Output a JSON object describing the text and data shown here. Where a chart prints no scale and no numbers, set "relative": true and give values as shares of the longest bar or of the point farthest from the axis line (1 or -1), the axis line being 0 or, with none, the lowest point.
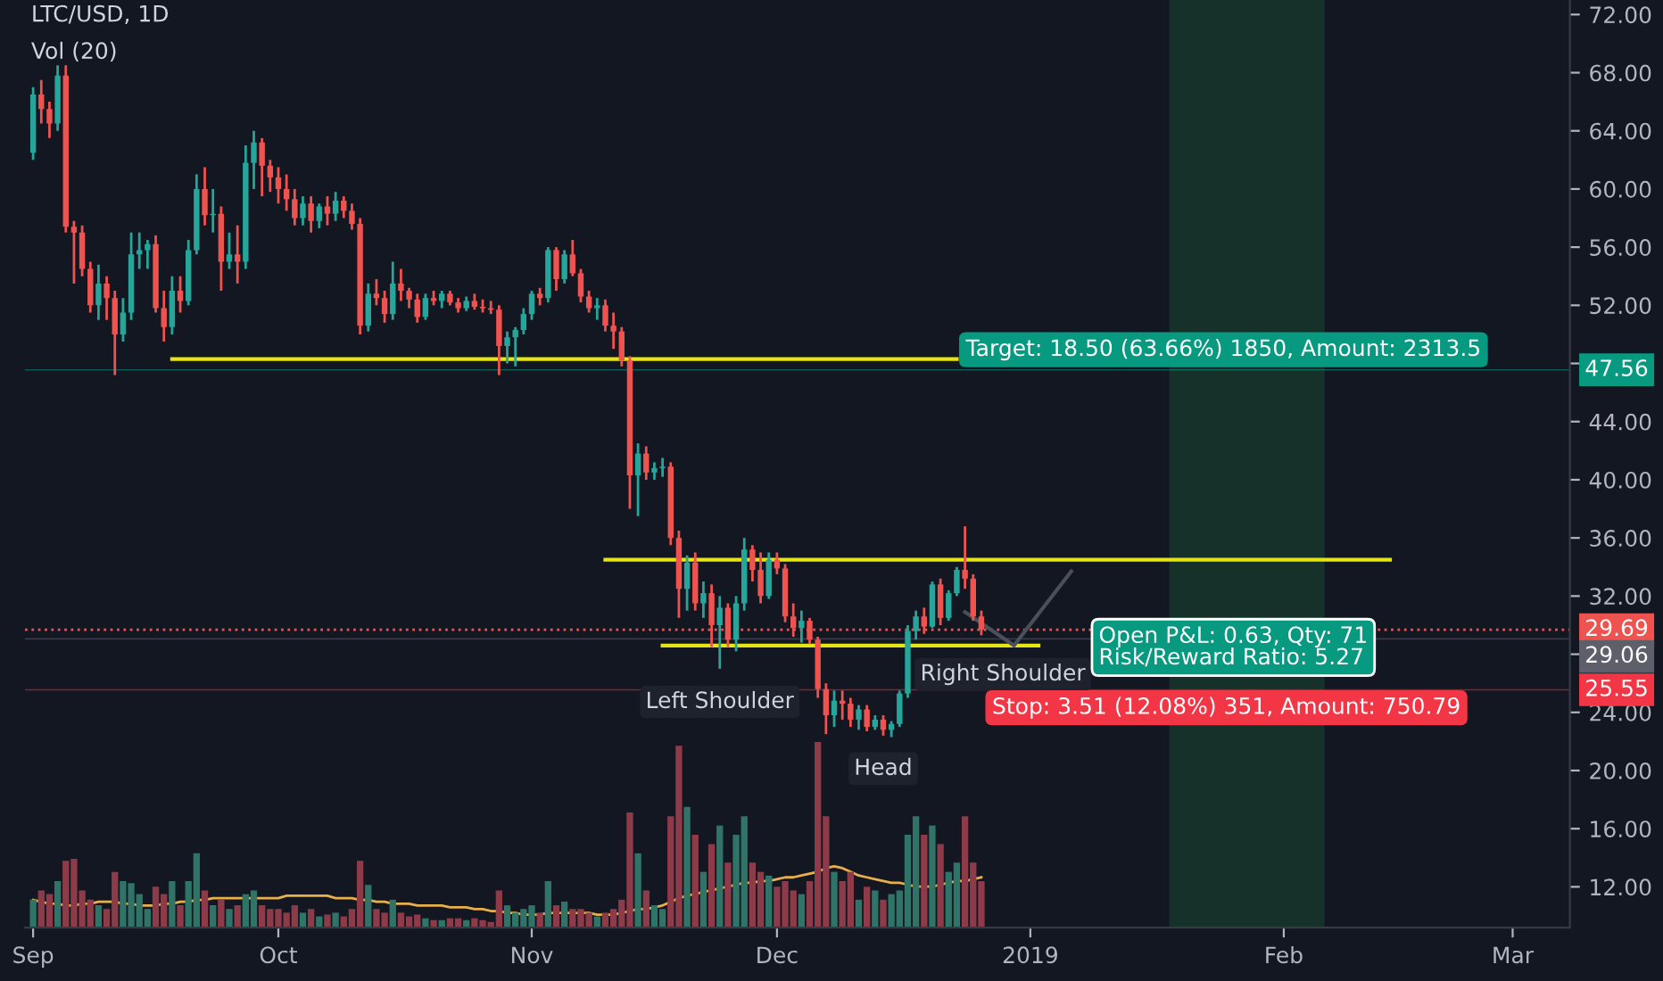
{
  "chart_data": [
    {
      "type": "candlestick",
      "title": "LTC/USD, 1D",
      "grid": false,
      "annotations": [
        "Vol (20)",
        {
          "text": "Left Shoulder",
          "x": "2018-11-24",
          "y": 27
        },
        {
          "text": "Head",
          "x": "2018-12-14",
          "y": 22.4
        },
        "Right Shoulder",
        "Target: 18.50 (63.66%) 1850, Amount: 2313.5",
        "Open P&L: 0.63, Qty: 71\nRisk/Reward Ratio: 5.27",
        "Stop: 3.51 (12.08%) 351, Amount: 750.79"
      ],
      "x": [
        "2018-09-01",
        "2018-09-02",
        "2018-09-03",
        "2018-09-04",
        "2018-09-05",
        "2018-09-06",
        "2018-09-07",
        "2018-09-08",
        "2018-09-09",
        "2018-09-10",
        "2018-09-11",
        "2018-09-12",
        "2018-09-13",
        "2018-09-14",
        "2018-09-15",
        "2018-09-16",
        "2018-09-17",
        "2018-09-18",
        "2018-09-19",
        "2018-09-20",
        "2018-09-21",
        "2018-09-22",
        "2018-09-23",
        "2018-09-24",
        "2018-09-25",
        "2018-09-26",
        "2018-09-27",
        "2018-09-28",
        "2018-09-29",
        "2018-09-30",
        "2018-10-01",
        "2018-10-02",
        "2018-10-03",
        "2018-10-04",
        "2018-10-05",
        "2018-10-06",
        "2018-10-07",
        "2018-10-08",
        "2018-10-09",
        "2018-10-10",
        "2018-10-11",
        "2018-10-12",
        "2018-10-13",
        "2018-10-14",
        "2018-10-15",
        "2018-10-16",
        "2018-10-17",
        "2018-10-18",
        "2018-10-19",
        "2018-10-20",
        "2018-10-21",
        "2018-10-22",
        "2018-10-23",
        "2018-10-24",
        "2018-10-25",
        "2018-10-26",
        "2018-10-27",
        "2018-10-28",
        "2018-10-29",
        "2018-10-30",
        "2018-10-31",
        "2018-11-01",
        "2018-11-02",
        "2018-11-03",
        "2018-11-04",
        "2018-11-05",
        "2018-11-06",
        "2018-11-07",
        "2018-11-08",
        "2018-11-09",
        "2018-11-10",
        "2018-11-11",
        "2018-11-12",
        "2018-11-13",
        "2018-11-14",
        "2018-11-15",
        "2018-11-16",
        "2018-11-17",
        "2018-11-18",
        "2018-11-19",
        "2018-11-20",
        "2018-11-21",
        "2018-11-22",
        "2018-11-23",
        "2018-11-24",
        "2018-11-25",
        "2018-11-26",
        "2018-11-27",
        "2018-11-28",
        "2018-11-29",
        "2018-11-30",
        "2018-12-01",
        "2018-12-02",
        "2018-12-03",
        "2018-12-04",
        "2018-12-05",
        "2018-12-06",
        "2018-12-07",
        "2018-12-08",
        "2018-12-09",
        "2018-12-10",
        "2018-12-11",
        "2018-12-12",
        "2018-12-13",
        "2018-12-14",
        "2018-12-15",
        "2018-12-16",
        "2018-12-17",
        "2018-12-18",
        "2018-12-19",
        "2018-12-20",
        "2018-12-21",
        "2018-12-22",
        "2018-12-23",
        "2018-12-24",
        "2018-12-25",
        "2018-12-26"
      ],
      "ohlc": [
        [
          62.5,
          67,
          62,
          66.5
        ],
        [
          66.5,
          67.5,
          64.5,
          65.5
        ],
        [
          65.5,
          66,
          63.5,
          64.5
        ],
        [
          64.5,
          68.5,
          64,
          67.8
        ],
        [
          67.8,
          68.5,
          57,
          57.4
        ],
        [
          57.4,
          57.8,
          53.5,
          57.0
        ],
        [
          57,
          57.5,
          54,
          54.5
        ],
        [
          54.5,
          55,
          51.5,
          52
        ],
        [
          52,
          54.8,
          51,
          53.5
        ],
        [
          53.5,
          54,
          51,
          52.5
        ],
        [
          52.5,
          53,
          47.2,
          50
        ],
        [
          50,
          52.5,
          49.5,
          51.5
        ],
        [
          51.5,
          57,
          51,
          55.5
        ],
        [
          55.5,
          57,
          54.5,
          55.8
        ],
        [
          55.8,
          56.5,
          54.5,
          56.2
        ],
        [
          56.2,
          56.8,
          51.5,
          51.8
        ],
        [
          51.8,
          53,
          49.5,
          50.5
        ],
        [
          50.5,
          54,
          50,
          53
        ],
        [
          53,
          54,
          51.5,
          52.3
        ],
        [
          52.3,
          56.5,
          52,
          55.8
        ],
        [
          55.8,
          61,
          55.5,
          60
        ],
        [
          60,
          61.5,
          57.5,
          58.2
        ],
        [
          58.2,
          60,
          57,
          58.3
        ],
        [
          58.3,
          58.8,
          53,
          55
        ],
        [
          55,
          57,
          54.5,
          55.5
        ],
        [
          55.5,
          57.5,
          53.5,
          55
        ],
        [
          55,
          63,
          54.5,
          61.8
        ],
        [
          61.8,
          64,
          60,
          63.2
        ],
        [
          63.2,
          63.5,
          59.5,
          61.6
        ],
        [
          61.6,
          62,
          59.8,
          60.8
        ],
        [
          60.8,
          61.5,
          59,
          60
        ],
        [
          60,
          61,
          58.5,
          59.3
        ],
        [
          59.3,
          60,
          57.5,
          58
        ],
        [
          58,
          59.5,
          57.5,
          59
        ],
        [
          59,
          59.5,
          57,
          57.8
        ],
        [
          57.8,
          59,
          57.3,
          58.8
        ],
        [
          58.8,
          59.5,
          57.5,
          58.3
        ],
        [
          58.3,
          59.8,
          57.8,
          59.2
        ],
        [
          59.2,
          59.5,
          58,
          58.5
        ],
        [
          58.5,
          59,
          57.2,
          57.6
        ],
        [
          57.6,
          58,
          50,
          50.6
        ],
        [
          50.6,
          53.5,
          50.2,
          52.8
        ],
        [
          52.8,
          53.8,
          52,
          52.5
        ],
        [
          52.5,
          53,
          50.8,
          51.4
        ],
        [
          51.4,
          55,
          51,
          53.5
        ],
        [
          53.5,
          54.5,
          52.3,
          53
        ],
        [
          53,
          53.2,
          51.8,
          52.4
        ],
        [
          52.4,
          52.8,
          50.8,
          51.2
        ],
        [
          51.2,
          52.8,
          51,
          52.5
        ],
        [
          52.5,
          53,
          52,
          52.3
        ],
        [
          52.3,
          53,
          51.8,
          52.8
        ],
        [
          52.8,
          53,
          52,
          52.2
        ],
        [
          52.2,
          52.5,
          51.5,
          51.8
        ],
        [
          51.8,
          52.6,
          51.6,
          52.3
        ],
        [
          52.3,
          52.8,
          51.7,
          51.9
        ],
        [
          51.9,
          52.4,
          51.5,
          51.8
        ],
        [
          51.8,
          52.3,
          51.4,
          51.7
        ],
        [
          51.7,
          52,
          47.2,
          49.2
        ],
        [
          49.2,
          50.2,
          48,
          49.8
        ],
        [
          49.8,
          50.5,
          47.8,
          50.3
        ],
        [
          50.3,
          51.8,
          50,
          51.4
        ],
        [
          51.4,
          53,
          51,
          52.8
        ],
        [
          52.8,
          53.2,
          52,
          52.5
        ],
        [
          52.5,
          56,
          52.2,
          55.8
        ],
        [
          55.8,
          56,
          53,
          53.8
        ],
        [
          53.8,
          55.8,
          53.5,
          55.5
        ],
        [
          55.5,
          56.5,
          54,
          54.2
        ],
        [
          54.2,
          54.5,
          52.2,
          52.6
        ],
        [
          52.6,
          53,
          51.5,
          51.8
        ],
        [
          51.8,
          52.5,
          51,
          52
        ],
        [
          52,
          52.4,
          50.2,
          50.6
        ],
        [
          50.6,
          51.5,
          49,
          50.2
        ],
        [
          50.2,
          50.5,
          47.8,
          48.2
        ],
        [
          48.2,
          48.5,
          38,
          40.3
        ],
        [
          40.3,
          42.5,
          37.5,
          41.8
        ],
        [
          41.8,
          42.3,
          40,
          40.5
        ],
        [
          40.5,
          41.2,
          40,
          40.8
        ],
        [
          40.8,
          41.5,
          40.2,
          40.9
        ],
        [
          40.9,
          41.2,
          35.5,
          36
        ],
        [
          36,
          36.5,
          30.5,
          32.5
        ],
        [
          32.5,
          34.8,
          31,
          34.3
        ],
        [
          34.3,
          35,
          31,
          31.5
        ],
        [
          31.5,
          33,
          30.5,
          32.2
        ],
        [
          32.2,
          32.8,
          28.5,
          30
        ],
        [
          30,
          32,
          27,
          31.2
        ],
        [
          31.2,
          31.5,
          28.5,
          29
        ],
        [
          29,
          32,
          28.2,
          31.5
        ],
        [
          31.5,
          36,
          31,
          35.2
        ],
        [
          35.2,
          35.5,
          33,
          33.8
        ],
        [
          33.8,
          35,
          31.5,
          32
        ],
        [
          32,
          35,
          31.8,
          34.5
        ],
        [
          34.5,
          35,
          33.5,
          33.9
        ],
        [
          33.9,
          34.2,
          30.2,
          30.6
        ],
        [
          30.6,
          31.5,
          29.2,
          29.8
        ],
        [
          29.8,
          31,
          28.8,
          30.3
        ],
        [
          30.3,
          30.5,
          28.7,
          29
        ],
        [
          29,
          29.2,
          25,
          25.6
        ],
        [
          25.6,
          26,
          22.5,
          23.8
        ],
        [
          23.8,
          25.5,
          23,
          24.8
        ],
        [
          24.8,
          25.5,
          23.5,
          24.6
        ],
        [
          24.6,
          25,
          23,
          23.5
        ],
        [
          23.5,
          24.5,
          22.8,
          24.2
        ],
        [
          24.2,
          24.5,
          22.7,
          23
        ],
        [
          23,
          23.8,
          22.8,
          23.5
        ],
        [
          23.5,
          23.8,
          22.4,
          22.8
        ],
        [
          22.8,
          23.4,
          22.3,
          23.2
        ],
        [
          23.2,
          25.5,
          23,
          25.3
        ],
        [
          25.3,
          30,
          25,
          29.6
        ],
        [
          29.6,
          31,
          29,
          30.6
        ],
        [
          30.6,
          31.2,
          29.4,
          29.9
        ],
        [
          29.9,
          33,
          29.8,
          32.8
        ],
        [
          32.8,
          33.2,
          30,
          30.5
        ],
        [
          30.5,
          32.4,
          30.3,
          32.2
        ],
        [
          32.2,
          34,
          32,
          33.8
        ],
        [
          33.8,
          36.8,
          32.5,
          33.2
        ],
        [
          33.2,
          33.5,
          30.3,
          30.6
        ],
        [
          30.6,
          31,
          29.3,
          29.69
        ]
      ],
      "colors": [
        "#26a69a",
        "#ef5350",
        "#ef5350",
        "#26a69a",
        "#ef5350",
        "#ef5350",
        "#ef5350",
        "#ef5350",
        "#26a69a",
        "#ef5350",
        "#ef5350",
        "#26a69a",
        "#26a69a",
        "#26a69a",
        "#26a69a",
        "#ef5350",
        "#ef5350",
        "#26a69a",
        "#ef5350",
        "#26a69a",
        "#26a69a",
        "#ef5350",
        "#26a69a",
        "#ef5350",
        "#26a69a",
        "#ef5350",
        "#26a69a",
        "#26a69a",
        "#ef5350",
        "#ef5350",
        "#ef5350",
        "#ef5350",
        "#ef5350",
        "#26a69a",
        "#ef5350",
        "#26a69a",
        "#ef5350",
        "#26a69a",
        "#ef5350",
        "#ef5350",
        "#ef5350",
        "#26a69a",
        "#ef5350",
        "#ef5350",
        "#26a69a",
        "#ef5350",
        "#ef5350",
        "#ef5350",
        "#26a69a",
        "#ef5350",
        "#26a69a",
        "#ef5350",
        "#ef5350",
        "#26a69a",
        "#ef5350",
        "#ef5350",
        "#ef5350",
        "#ef5350",
        "#26a69a",
        "#26a69a",
        "#26a69a",
        "#26a69a",
        "#ef5350",
        "#26a69a",
        "#ef5350",
        "#26a69a",
        "#ef5350",
        "#ef5350",
        "#ef5350",
        "#26a69a",
        "#ef5350",
        "#ef5350",
        "#ef5350",
        "#ef5350",
        "#26a69a",
        "#ef5350",
        "#26a69a",
        "#26a69a",
        "#ef5350",
        "#ef5350",
        "#26a69a",
        "#ef5350",
        "#26a69a",
        "#ef5350",
        "#26a69a",
        "#ef5350",
        "#26a69a",
        "#26a69a",
        "#ef5350",
        "#ef5350",
        "#26a69a",
        "#ef5350",
        "#ef5350",
        "#ef5350",
        "#26a69a",
        "#ef5350",
        "#ef5350",
        "#ef5350",
        "#26a69a",
        "#ef5350",
        "#ef5350",
        "#26a69a",
        "#ef5350",
        "#26a69a",
        "#ef5350",
        "#26a69a",
        "#26a69a",
        "#26a69a",
        "#26a69a",
        "#ef5350",
        "#26a69a",
        "#ef5350",
        "#26a69a",
        "#26a69a",
        "#ef5350",
        "#ef5350",
        "#ef5350"
      ],
      "series": [
        {
          "type": "line",
          "color": "#e5e510",
          "x": [
            "2018-09-18",
            "2018-12-23"
          ],
          "values": [
            48.3,
            48.3
          ]
        },
        {
          "type": "line",
          "color": "#e5e510",
          "x": [
            "2018-11-10",
            "2019-02-14"
          ],
          "values": [
            34.5,
            34.5
          ]
        },
        {
          "type": "line",
          "color": "#e5e510",
          "x": [
            "2018-11-17",
            "2019-01-02"
          ],
          "values": [
            28.6,
            28.6
          ]
        },
        {
          "type": "line",
          "color": "#4a4f5c",
          "x": [
            "2018-12-24",
            "2018-12-30",
            "2019-01-06"
          ],
          "values": [
            30.9,
            28.6,
            33.7
          ]
        }
      ],
      "ref_lines": [
        {
          "axis": "y",
          "value": 47.56,
          "label": "47.56",
          "color": "#089981"
        },
        {
          "axis": "y",
          "value": 29.69,
          "label": "29.69",
          "color": "#ef5350",
          "line_style": "dotted"
        },
        {
          "axis": "y",
          "value": 29.06,
          "label": "29.06",
          "color": "#5d606b"
        },
        {
          "axis": "y",
          "value": 25.55,
          "label": "25.55",
          "color": "#f23645"
        }
      ],
      "bands": [
        {
          "axis": "x",
          "from": "2019-01-18",
          "to": "2019-02-06",
          "color": "#16302a"
        }
      ],
      "xlim": [
        "2018-08-31",
        "2019-03-08"
      ],
      "xticks": [
        {
          "value": "2018-09-01",
          "label": "Sep"
        },
        {
          "value": "2018-10-01",
          "label": "Oct"
        },
        {
          "value": "2018-11-01",
          "label": "Nov"
        },
        {
          "value": "2018-12-01",
          "label": "Dec"
        },
        {
          "value": "2019-01-01",
          "label": "2019"
        },
        {
          "value": "2019-02-01",
          "label": "Feb"
        },
        {
          "value": "2019-03-01",
          "label": "Mar"
        }
      ],
      "ylim": [
        9.2,
        73
      ],
      "yticks": [
        {
          "value": 12,
          "label": "12.00"
        },
        {
          "value": 16,
          "label": "16.00"
        },
        {
          "value": 20,
          "label": "20.00"
        },
        {
          "value": 24,
          "label": "24.00"
        },
        {
          "value": 28,
          "label": null
        },
        {
          "value": 32,
          "label": "32.00"
        },
        {
          "value": 36,
          "label": "36.00"
        },
        {
          "value": 40,
          "label": "40.00"
        },
        {
          "value": 44,
          "label": "44.00"
        },
        {
          "value": 48,
          "label": null
        },
        {
          "value": 52,
          "label": "52.00"
        },
        {
          "value": 56,
          "label": "56.00"
        },
        {
          "value": 60,
          "label": "60.00"
        },
        {
          "value": 64,
          "label": "64.00"
        },
        {
          "value": 68,
          "label": "68.00"
        },
        {
          "value": 72,
          "label": "72.00"
        }
      ]
    },
    {
      "type": "bar",
      "relative": true,
      "categories": [
        null,
        null,
        null,
        null,
        null,
        null,
        null,
        null,
        null,
        null,
        null,
        null,
        null,
        null,
        null,
        null,
        null,
        null,
        null,
        null,
        null,
        null,
        null,
        null,
        null,
        null,
        null,
        null,
        null,
        null,
        null,
        null,
        null,
        null,
        null,
        null,
        null,
        null,
        null,
        null,
        null,
        null,
        null,
        null,
        null,
        null,
        null,
        null,
        null,
        null,
        null,
        null,
        null,
        null,
        null,
        null,
        null,
        null,
        null,
        null,
        null,
        null,
        null,
        null,
        null,
        null,
        null,
        null,
        null,
        null,
        null,
        null,
        null,
        null,
        null,
        null,
        null,
        null,
        null,
        null,
        null,
        null,
        null,
        null,
        null,
        null,
        null,
        null,
        null,
        null,
        null,
        null,
        null,
        null,
        null,
        null,
        null,
        null,
        null,
        null,
        null,
        null,
        null,
        null,
        null,
        null,
        null,
        null,
        null,
        null,
        null,
        null,
        null,
        null,
        null,
        null,
        null
      ],
      "values": [
        0.15,
        0.2,
        0.18,
        0.25,
        0.36,
        0.37,
        0.2,
        0.15,
        0.12,
        0.1,
        0.3,
        0.25,
        0.24,
        0.18,
        0.1,
        0.22,
        0.18,
        0.25,
        0.12,
        0.25,
        0.4,
        0.2,
        0.12,
        0.15,
        0.1,
        0.12,
        0.18,
        0.2,
        0.12,
        0.1,
        0.1,
        0.08,
        0.12,
        0.08,
        0.1,
        0.06,
        0.07,
        0.08,
        0.06,
        0.1,
        0.36,
        0.23,
        0.1,
        0.08,
        0.15,
        0.08,
        0.06,
        0.07,
        0.05,
        0.04,
        0.04,
        0.05,
        0.05,
        0.04,
        0.05,
        0.04,
        0.03,
        0.2,
        0.12,
        0.08,
        0.1,
        0.12,
        0.08,
        0.25,
        0.12,
        0.14,
        0.1,
        0.1,
        0.08,
        0.06,
        0.08,
        0.1,
        0.15,
        0.62,
        0.4,
        0.2,
        0.12,
        0.1,
        0.6,
        0.98,
        0.65,
        0.5,
        0.3,
        0.45,
        0.55,
        0.35,
        0.5,
        0.6,
        0.35,
        0.3,
        0.28,
        0.22,
        0.25,
        0.2,
        0.18,
        0.25,
        1.0,
        0.6,
        0.3,
        0.25,
        0.3,
        0.15,
        0.22,
        0.2,
        0.15,
        0.18,
        0.2,
        0.5,
        0.6,
        0.5,
        0.55,
        0.45,
        0.3,
        0.35,
        0.6,
        0.35,
        0.25
      ],
      "colors": [
        "#2f7466",
        "#8e3b49",
        "#8e3b49",
        "#2f7466",
        "#8e3b49",
        "#8e3b49",
        "#8e3b49",
        "#8e3b49",
        "#2f7466",
        "#8e3b49",
        "#8e3b49",
        "#2f7466",
        "#2f7466",
        "#2f7466",
        "#2f7466",
        "#8e3b49",
        "#8e3b49",
        "#2f7466",
        "#8e3b49",
        "#2f7466",
        "#2f7466",
        "#8e3b49",
        "#2f7466",
        "#8e3b49",
        "#2f7466",
        "#8e3b49",
        "#2f7466",
        "#2f7466",
        "#8e3b49",
        "#8e3b49",
        "#8e3b49",
        "#8e3b49",
        "#8e3b49",
        "#2f7466",
        "#8e3b49",
        "#2f7466",
        "#8e3b49",
        "#2f7466",
        "#8e3b49",
        "#8e3b49",
        "#8e3b49",
        "#2f7466",
        "#8e3b49",
        "#8e3b49",
        "#2f7466",
        "#8e3b49",
        "#8e3b49",
        "#8e3b49",
        "#2f7466",
        "#8e3b49",
        "#2f7466",
        "#8e3b49",
        "#8e3b49",
        "#2f7466",
        "#8e3b49",
        "#8e3b49",
        "#8e3b49",
        "#8e3b49",
        "#2f7466",
        "#2f7466",
        "#2f7466",
        "#2f7466",
        "#8e3b49",
        "#2f7466",
        "#8e3b49",
        "#2f7466",
        "#8e3b49",
        "#8e3b49",
        "#8e3b49",
        "#2f7466",
        "#8e3b49",
        "#8e3b49",
        "#8e3b49",
        "#8e3b49",
        "#2f7466",
        "#8e3b49",
        "#2f7466",
        "#2f7466",
        "#8e3b49",
        "#8e3b49",
        "#2f7466",
        "#8e3b49",
        "#2f7466",
        "#8e3b49",
        "#2f7466",
        "#8e3b49",
        "#2f7466",
        "#2f7466",
        "#8e3b49",
        "#8e3b49",
        "#2f7466",
        "#8e3b49",
        "#8e3b49",
        "#8e3b49",
        "#2f7466",
        "#8e3b49",
        "#8e3b49",
        "#8e3b49",
        "#2f7466",
        "#8e3b49",
        "#8e3b49",
        "#2f7466",
        "#8e3b49",
        "#2f7466",
        "#8e3b49",
        "#2f7466",
        "#2f7466",
        "#2f7466",
        "#2f7466",
        "#8e3b49",
        "#2f7466",
        "#8e3b49",
        "#2f7466",
        "#2f7466",
        "#8e3b49",
        "#8e3b49",
        "#8e3b49"
      ]
    },
    {
      "type": "line",
      "relative": true,
      "categories": [
        null,
        null,
        null,
        null,
        null,
        null,
        null,
        null,
        null,
        null,
        null,
        null,
        null,
        null,
        null,
        null,
        null,
        null,
        null,
        null,
        null,
        null,
        null,
        null,
        null,
        null,
        null,
        null,
        null,
        null,
        null,
        null,
        null,
        null,
        null,
        null,
        null,
        null,
        null,
        null,
        null,
        null,
        null,
        null,
        null,
        null,
        null,
        null,
        null,
        null,
        null,
        null,
        null,
        null,
        null,
        null,
        null,
        null,
        null,
        null,
        null,
        null,
        null,
        null,
        null,
        null,
        null,
        null,
        null,
        null,
        null,
        null,
        null,
        null,
        null,
        null,
        null,
        null,
        null,
        null,
        null,
        null,
        null,
        null,
        null,
        null,
        null,
        null,
        null,
        null,
        null,
        null,
        null,
        null,
        null,
        null,
        null,
        null,
        null,
        null,
        null,
        null,
        null,
        null,
        null,
        null,
        null,
        null,
        null,
        null,
        null,
        null,
        null,
        null,
        null,
        null,
        null
      ],
      "series": [
        {
          "color": "#e8b04a",
          "values": [
            0.45,
            0.42,
            0.39,
            0.39,
            0.36,
            0.36,
            0.39,
            0.39,
            0.42,
            0.42,
            0.42,
            0.39,
            0.39,
            0.36,
            0.36,
            0.36,
            0.39,
            0.39,
            0.42,
            0.42,
            0.45,
            0.45,
            0.48,
            0.48,
            0.48,
            0.48,
            0.48,
            0.48,
            0.48,
            0.48,
            0.48,
            0.52,
            0.52,
            0.52,
            0.52,
            0.52,
            0.52,
            0.48,
            0.48,
            0.48,
            0.45,
            0.45,
            0.42,
            0.42,
            0.39,
            0.39,
            0.39,
            0.36,
            0.36,
            0.36,
            0.36,
            0.33,
            0.33,
            0.33,
            0.3,
            0.3,
            0.27,
            0.27,
            0.24,
            0.24,
            0.21,
            0.21,
            0.21,
            0.24,
            0.24,
            0.24,
            0.24,
            0.24,
            0.24,
            0.21,
            0.21,
            0.21,
            0.24,
            0.27,
            0.3,
            0.3,
            0.33,
            0.36,
            0.42,
            0.48,
            0.52,
            0.55,
            0.58,
            0.61,
            0.64,
            0.67,
            0.7,
            0.73,
            0.73,
            0.76,
            0.76,
            0.79,
            0.82,
            0.82,
            0.85,
            0.88,
            0.91,
            0.97,
            1.0,
            0.97,
            0.91,
            0.85,
            0.82,
            0.79,
            0.76,
            0.73,
            0.73,
            0.7,
            0.67,
            0.67,
            0.67,
            0.7,
            0.73,
            0.76,
            0.76,
            0.79,
            0.82
          ]
        }
      ]
    }
  ]
}
